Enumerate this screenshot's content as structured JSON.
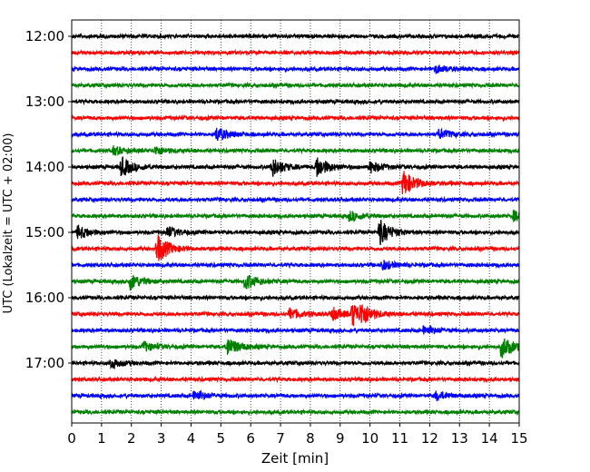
{
  "chart_data": {
    "type": "line",
    "title": "",
    "xlabel": "Zeit  [min]",
    "ylabel": "UTC (Lokalzeit = UTC + 02:00)",
    "xlim": [
      0,
      15
    ],
    "x_ticks": [
      "0",
      "1",
      "2",
      "3",
      "4",
      "5",
      "6",
      "7",
      "8",
      "9",
      "10",
      "11",
      "12",
      "13",
      "14",
      "15"
    ],
    "y_tick_labels": [
      "12:00",
      "13:00",
      "14:00",
      "15:00",
      "16:00",
      "17:00"
    ],
    "grid": "vertical dotted",
    "legend": "none",
    "trace_interval_minutes": 15,
    "trace_colors": [
      "#000000",
      "#ff0000",
      "#0000ff",
      "#008000"
    ],
    "traces": [
      {
        "start": "12:00",
        "color": "#000000",
        "events": []
      },
      {
        "start": "12:15",
        "color": "#ff0000",
        "events": []
      },
      {
        "start": "12:30",
        "color": "#0000ff",
        "events": [
          {
            "t": 12.2,
            "amp": 0.25
          }
        ]
      },
      {
        "start": "12:45",
        "color": "#008000",
        "events": []
      },
      {
        "start": "13:00",
        "color": "#000000",
        "events": []
      },
      {
        "start": "13:15",
        "color": "#ff0000",
        "events": []
      },
      {
        "start": "13:30",
        "color": "#0000ff",
        "events": [
          {
            "t": 4.85,
            "amp": 0.45
          },
          {
            "t": 12.3,
            "amp": 0.3
          }
        ]
      },
      {
        "start": "13:45",
        "color": "#008000",
        "events": [
          {
            "t": 1.4,
            "amp": 0.25
          },
          {
            "t": 2.8,
            "amp": 0.25
          }
        ]
      },
      {
        "start": "14:00",
        "color": "#000000",
        "events": [
          {
            "t": 1.65,
            "amp": 0.6
          },
          {
            "t": 6.7,
            "amp": 0.6
          },
          {
            "t": 8.2,
            "amp": 0.65
          },
          {
            "t": 10.0,
            "amp": 0.35
          }
        ]
      },
      {
        "start": "14:15",
        "color": "#ff0000",
        "events": [
          {
            "t": 11.1,
            "amp": 0.8
          }
        ]
      },
      {
        "start": "14:30",
        "color": "#0000ff",
        "events": []
      },
      {
        "start": "14:45",
        "color": "#008000",
        "events": [
          {
            "t": 9.3,
            "amp": 0.3
          },
          {
            "t": 14.8,
            "amp": 0.3
          }
        ]
      },
      {
        "start": "15:00",
        "color": "#000000",
        "events": [
          {
            "t": 0.2,
            "amp": 0.4
          },
          {
            "t": 3.2,
            "amp": 0.35
          },
          {
            "t": 10.3,
            "amp": 0.8
          }
        ]
      },
      {
        "start": "15:15",
        "color": "#ff0000",
        "events": [
          {
            "t": 2.85,
            "amp": 0.9
          }
        ]
      },
      {
        "start": "15:30",
        "color": "#0000ff",
        "events": [
          {
            "t": 10.4,
            "amp": 0.3
          }
        ]
      },
      {
        "start": "15:45",
        "color": "#008000",
        "events": [
          {
            "t": 1.95,
            "amp": 0.5
          },
          {
            "t": 5.8,
            "amp": 0.5
          }
        ]
      },
      {
        "start": "16:00",
        "color": "#000000",
        "events": []
      },
      {
        "start": "16:15",
        "color": "#ff0000",
        "events": [
          {
            "t": 7.3,
            "amp": 0.35
          },
          {
            "t": 8.7,
            "amp": 0.4
          },
          {
            "t": 9.4,
            "amp": 0.7
          },
          {
            "t": 9.7,
            "amp": 0.45
          }
        ]
      },
      {
        "start": "16:30",
        "color": "#0000ff",
        "events": [
          {
            "t": 11.8,
            "amp": 0.3
          }
        ]
      },
      {
        "start": "16:45",
        "color": "#008000",
        "events": [
          {
            "t": 2.4,
            "amp": 0.3
          },
          {
            "t": 5.2,
            "amp": 0.6
          },
          {
            "t": 14.4,
            "amp": 0.7
          }
        ]
      },
      {
        "start": "17:00",
        "color": "#000000",
        "events": [
          {
            "t": 1.3,
            "amp": 0.3
          }
        ]
      },
      {
        "start": "17:15",
        "color": "#ff0000",
        "events": []
      },
      {
        "start": "17:30",
        "color": "#0000ff",
        "events": [
          {
            "t": 4.1,
            "amp": 0.35
          },
          {
            "t": 12.2,
            "amp": 0.25
          }
        ]
      },
      {
        "start": "17:45",
        "color": "#008000",
        "events": []
      }
    ]
  }
}
